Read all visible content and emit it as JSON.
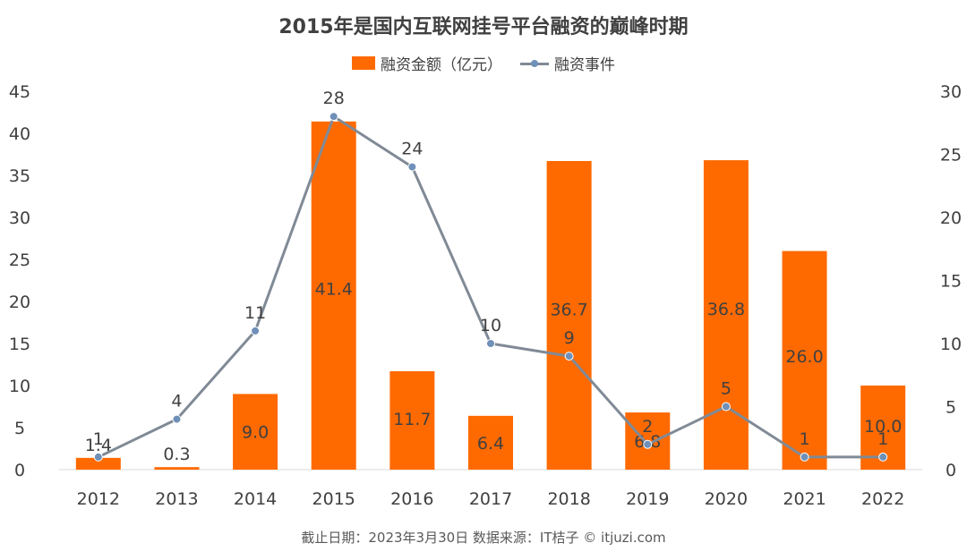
{
  "chart_data": {
    "type": "bar",
    "title": "2015年是国内互联网挂号平台融资的巅峰时期",
    "categories": [
      "2012",
      "2013",
      "2014",
      "2015",
      "2016",
      "2017",
      "2018",
      "2019",
      "2020",
      "2021",
      "2022"
    ],
    "series": [
      {
        "name": "融资金额（亿元）",
        "type": "bar",
        "axis": "left",
        "values": [
          1.4,
          0.3,
          9.0,
          41.4,
          11.7,
          6.4,
          36.7,
          6.8,
          36.8,
          26.0,
          10.0
        ],
        "labels": [
          "1.4",
          "0.3",
          "9.0",
          "41.4",
          "11.7",
          "6.4",
          "36.7",
          "6.8",
          "36.8",
          "26.0",
          "10.0"
        ],
        "color": "#FF6A00"
      },
      {
        "name": "融资事件",
        "type": "line",
        "axis": "right",
        "values": [
          1,
          4,
          11,
          28,
          24,
          10,
          9,
          2,
          5,
          1,
          1
        ],
        "labels": [
          "1",
          "4",
          "11",
          "28",
          "24",
          "10",
          "9",
          "2",
          "5",
          "1",
          "1"
        ],
        "color": "#808A96",
        "marker_color": "#6F90B8"
      }
    ],
    "y_left": {
      "lim": [
        0,
        45
      ],
      "ticks": [
        "0",
        "5",
        "10",
        "15",
        "20",
        "25",
        "30",
        "35",
        "40",
        "45"
      ]
    },
    "y_right": {
      "lim": [
        0,
        30
      ],
      "ticks": [
        "0",
        "5",
        "10",
        "15",
        "20",
        "25",
        "30"
      ]
    },
    "grid": false,
    "legend_position": "top-center"
  },
  "footer": {
    "note": "截止日期：2023年3月30日    数据来源：IT桔子 © itjuzi.com"
  },
  "colors": {
    "bar": "#FF6A00",
    "line": "#808A96",
    "marker": "#6F90B8",
    "text": "#404040"
  }
}
